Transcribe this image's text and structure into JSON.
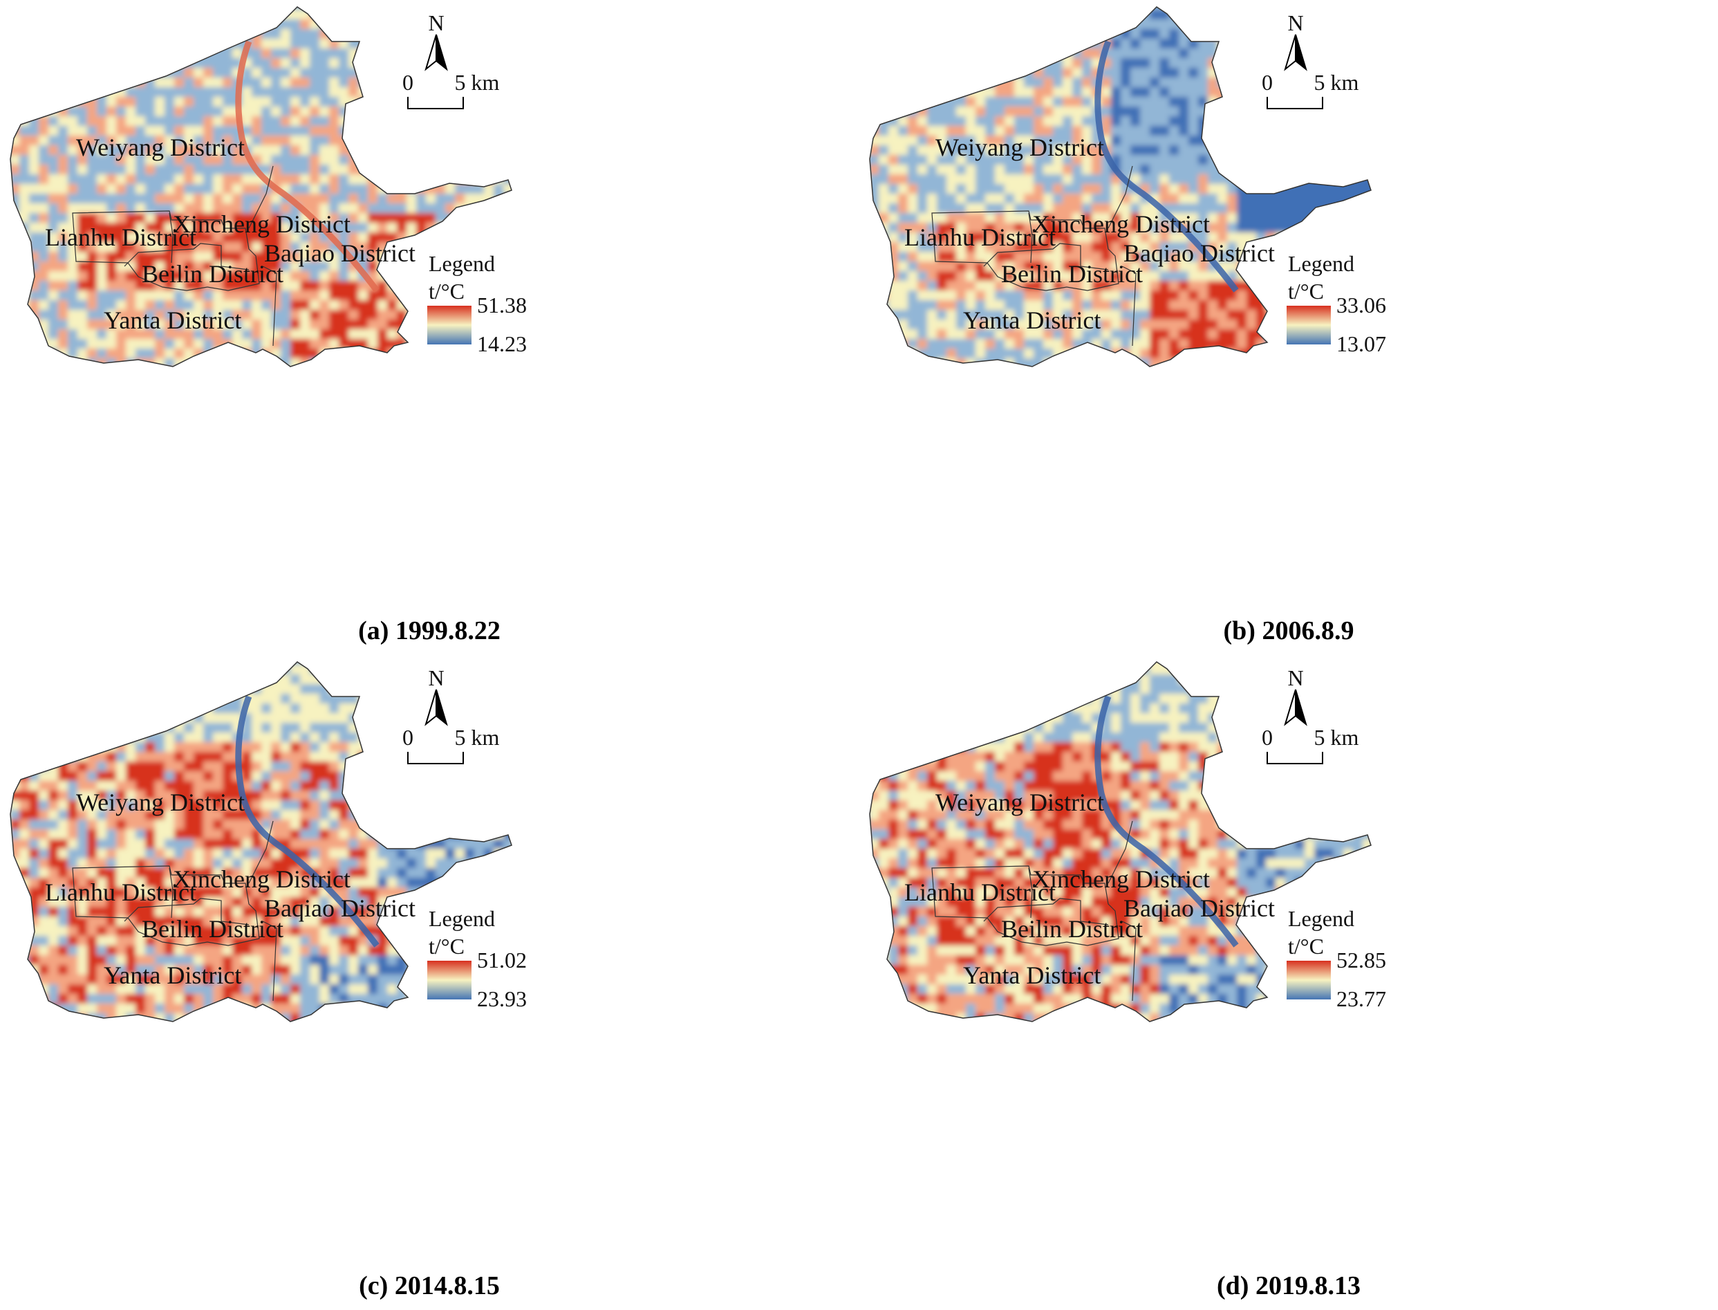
{
  "panels": [
    {
      "id": "a",
      "caption": "(a) 1999.8.22",
      "legend": {
        "title": "Legend",
        "unit": "t/°C",
        "max": "51.38",
        "min": "14.23"
      },
      "pattern": "old"
    },
    {
      "id": "b",
      "caption": "(b) 2006.8.9",
      "legend": {
        "title": "Legend",
        "unit": "t/°C",
        "max": "33.06",
        "min": "13.07"
      },
      "pattern": "mid"
    },
    {
      "id": "c",
      "caption": "(c) 2014.8.15",
      "legend": {
        "title": "Legend",
        "unit": "t/°C",
        "max": "51.02",
        "min": "23.93"
      },
      "pattern": "north"
    },
    {
      "id": "d",
      "caption": "(d) 2019.8.13",
      "legend": {
        "title": "Legend",
        "unit": "t/°C",
        "max": "52.85",
        "min": "23.77"
      },
      "pattern": "north"
    }
  ],
  "districts": {
    "weiyang": "Weiyang District",
    "lianhu": "Lianhu District",
    "xincheng": "Xincheng District",
    "baqiao": "Baqiao District",
    "beilin": "Beilin District",
    "yanta": "Yanta District"
  },
  "north_arrow": "N",
  "scale_bar": {
    "zero": "0",
    "five": "5 km"
  },
  "colors": {
    "hot": "#d7301f",
    "warm": "#f4a582",
    "neutral": "#f7f2c0",
    "cool": "#92b6d6",
    "cold": "#3f6fb6"
  }
}
